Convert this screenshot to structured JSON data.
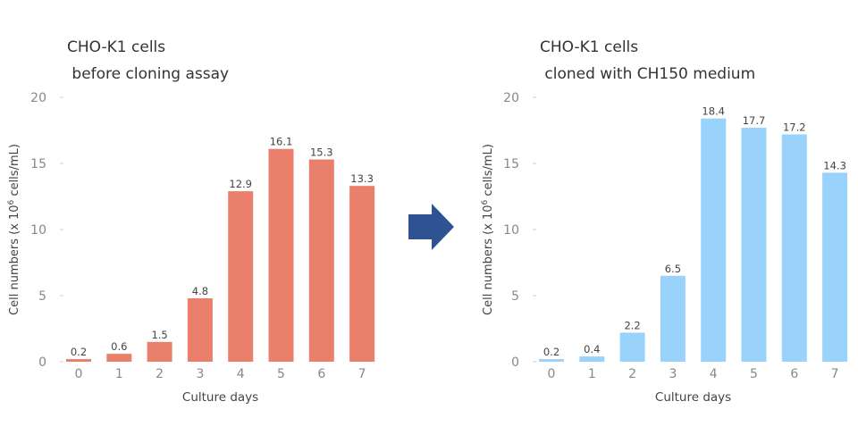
{
  "chart_data": [
    {
      "type": "bar",
      "title": "CHO-K1 cells",
      "subtitle": " before cloning assay",
      "xlabel": "Culture days",
      "ylabel": {
        "prefix": "Cell numbers (x 10",
        "sup": "6",
        "suffix": " cells/mL)"
      },
      "categories": [
        "0",
        "1",
        "2",
        "3",
        "4",
        "5",
        "6",
        "7"
      ],
      "values": [
        0.2,
        0.6,
        1.5,
        4.8,
        12.9,
        16.1,
        15.3,
        13.3
      ],
      "labels": [
        "0.2",
        "0.6",
        "1.5",
        "4.8",
        "12.9",
        "16.1",
        "15.3",
        "13.3"
      ],
      "ylim": [
        0,
        20
      ],
      "yticks": [
        "0",
        "5",
        "10",
        "15",
        "20"
      ],
      "grid": false,
      "color": "#ea806c"
    },
    {
      "type": "bar",
      "title": "CHO-K1 cells",
      "subtitle": " cloned with CH150 medium",
      "xlabel": "Culture days",
      "ylabel": {
        "prefix": "Cell numbers (x 10",
        "sup": "6",
        "suffix": " cells/mL)"
      },
      "categories": [
        "0",
        "1",
        "2",
        "3",
        "4",
        "5",
        "6",
        "7"
      ],
      "values": [
        0.2,
        0.4,
        2.2,
        6.5,
        18.4,
        17.7,
        17.2,
        14.3
      ],
      "labels": [
        "0.2",
        "0.4",
        "2.2",
        "6.5",
        "18.4",
        "17.7",
        "17.2",
        "14.3"
      ],
      "ylim": [
        0,
        20
      ],
      "yticks": [
        "0",
        "5",
        "10",
        "15",
        "20"
      ],
      "grid": false,
      "color": "#99d3fb"
    }
  ],
  "arrow": {
    "icon": "right-arrow-icon",
    "color": "#2f5392"
  }
}
